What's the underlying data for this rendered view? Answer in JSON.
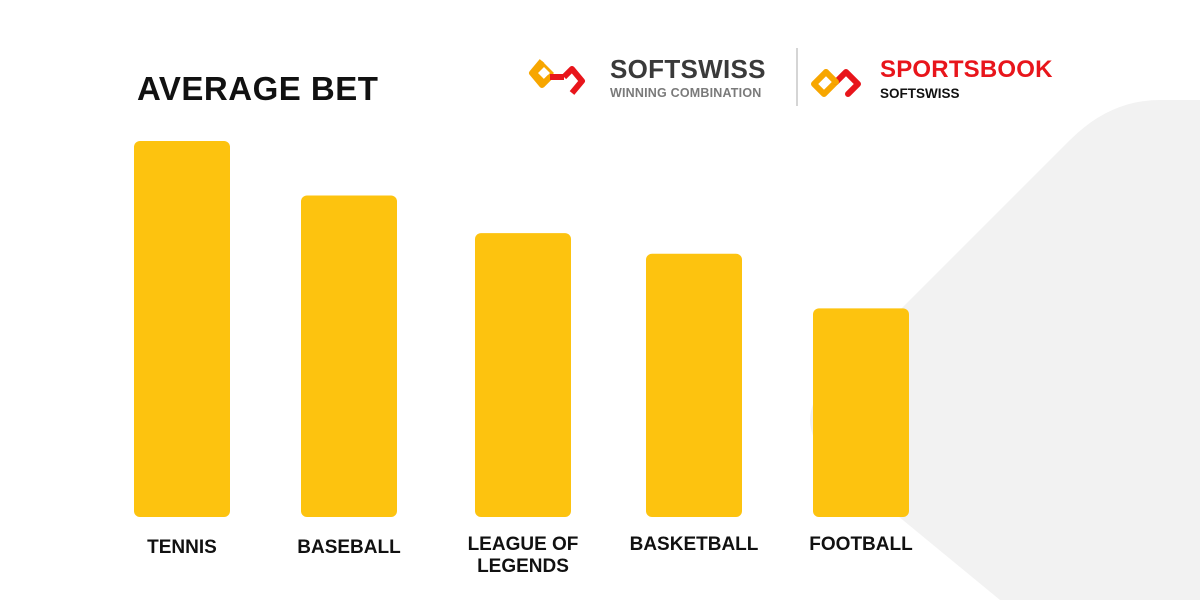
{
  "title": "AVERAGE BET",
  "logos": {
    "softswiss": {
      "name": "SOFTSWISS",
      "tagline": "WINNING COMBINATION"
    },
    "sportsbook": {
      "name": "SPORTSBOOK",
      "tagline": "SOFTSWISS"
    }
  },
  "colors": {
    "bar": "#FDC30F",
    "title": "#111111",
    "brand_red": "#E8151B",
    "brand_orange": "#F7A600",
    "background_shape": "#F2F2F2"
  },
  "icons": [
    "softswiss-mark-icon",
    "sportsbook-mark-icon"
  ],
  "chart_data": {
    "type": "bar",
    "title": "AVERAGE BET",
    "categories": [
      "TENNIS",
      "BASEBALL",
      "LEAGUE OF LEGENDS",
      "BASKETBALL",
      "FOOTBALL"
    ],
    "category_lines": [
      [
        "TENNIS"
      ],
      [
        "BASEBALL"
      ],
      [
        "LEAGUE OF",
        "LEGENDS"
      ],
      [
        "BASKETBALL"
      ],
      [
        "FOOTBALL"
      ]
    ],
    "values": [
      100,
      85.5,
      75.5,
      70,
      55.5
    ],
    "ylim": [
      0,
      100
    ],
    "grid": false,
    "legend": "none",
    "xlabel": "",
    "ylabel": ""
  }
}
